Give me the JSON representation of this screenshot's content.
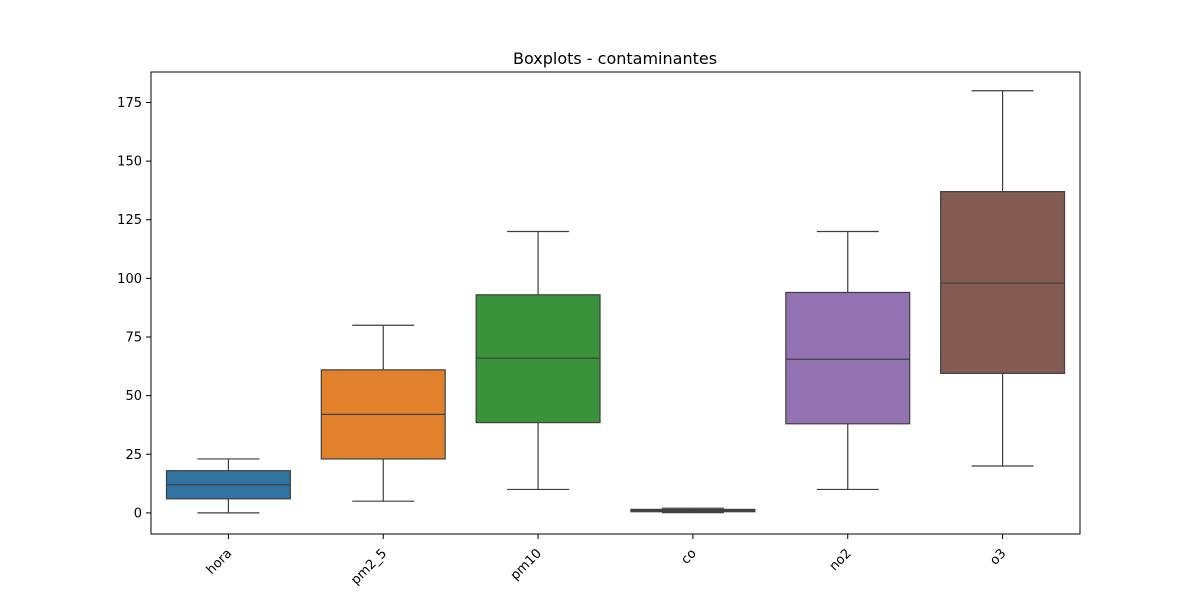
{
  "chart_data": {
    "type": "box",
    "title": "Boxplots - contaminantes",
    "xlabel": "",
    "ylabel": "",
    "ylim": [
      -9,
      188
    ],
    "yticks": [
      0,
      25,
      50,
      75,
      100,
      125,
      150,
      175
    ],
    "grid": false,
    "categories": [
      "hora",
      "pm2_5",
      "pm10",
      "co",
      "no2",
      "o3"
    ],
    "boxes": [
      {
        "category": "hora",
        "color": "#3274a1",
        "whisker_low": 0,
        "q1": 6,
        "median": 12,
        "q3": 18,
        "whisker_high": 23
      },
      {
        "category": "pm2_5",
        "color": "#e1812c",
        "whisker_low": 5,
        "q1": 23,
        "median": 42,
        "q3": 61,
        "whisker_high": 80
      },
      {
        "category": "pm10",
        "color": "#3a923a",
        "whisker_low": 10,
        "q1": 38.5,
        "median": 66,
        "q3": 93,
        "whisker_high": 120
      },
      {
        "category": "co",
        "color": "#c03d3e",
        "whisker_low": 0.1,
        "q1": 0.5,
        "median": 1.0,
        "q3": 1.5,
        "whisker_high": 2.0
      },
      {
        "category": "no2",
        "color": "#9372b2",
        "whisker_low": 10,
        "q1": 38,
        "median": 65.5,
        "q3": 94,
        "whisker_high": 120
      },
      {
        "category": "o3",
        "color": "#845b53",
        "whisker_low": 20,
        "q1": 59.5,
        "median": 98,
        "q3": 137,
        "whisker_high": 180
      }
    ]
  }
}
